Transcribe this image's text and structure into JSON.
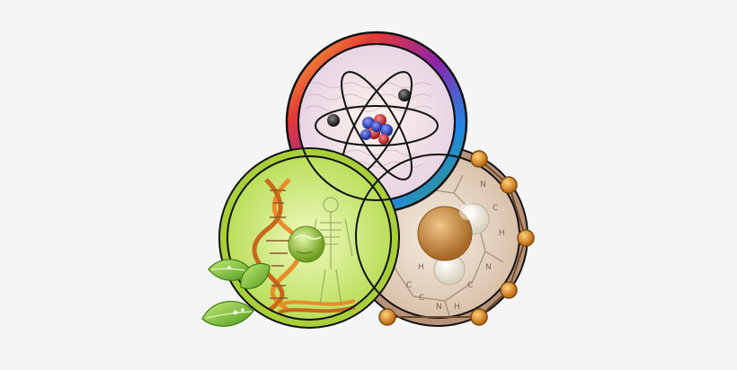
{
  "background": "#f5f5f5",
  "colors": {
    "physics_rim_stops": [
      "#e53935",
      "#fb8c00",
      "#fdd835",
      "#43a047",
      "#1e88e5",
      "#8e24aa",
      "#d81b60"
    ],
    "physics_fill": "#f4e7ef",
    "biology_fill": "#d9ef8a",
    "biology_rim": "#a8cf3a",
    "chemistry_fill": "#ead9c8",
    "chemistry_rim": "#b8917a",
    "outline": "#111111",
    "dna_orange": "#e88d2a",
    "leaf_green": "#7cc23a",
    "node_orange": "#e39a2c",
    "water_oxygen": "#c98a3f",
    "water_hydrogen": "#f3efe3",
    "nucleon_red": "#d23b3b",
    "nucleon_blue": "#3046c8"
  },
  "chemistry_labels": {
    "atoms": [
      "N",
      "C",
      "H",
      "N",
      "C",
      "H",
      "N",
      "C",
      "C",
      "H"
    ]
  }
}
